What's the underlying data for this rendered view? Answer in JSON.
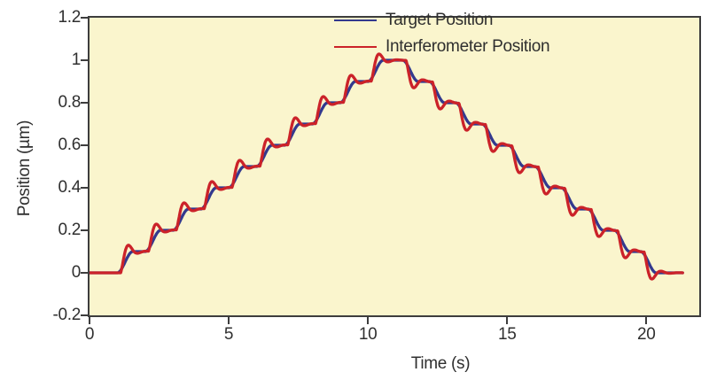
{
  "chart_data": {
    "type": "line",
    "title": "",
    "xlabel": "Time (s)",
    "ylabel": "Position (µm)",
    "xlim": [
      0,
      21.9
    ],
    "ylim": [
      -0.2,
      1.2
    ],
    "grid": false,
    "legend_position": "top-right-inside",
    "x_ticks": {
      "values": [
        0,
        5,
        10,
        15,
        20
      ],
      "labels": [
        "0",
        "5",
        "10",
        "15",
        "20"
      ]
    },
    "y_ticks": {
      "values": [
        -0.2,
        0,
        0.2,
        0.4,
        0.6,
        0.8,
        1,
        1.2
      ],
      "labels": [
        "-0.2",
        "0",
        "0.2",
        "0.4",
        "0.6",
        "0.8",
        "1",
        "1.2"
      ]
    },
    "colors": {
      "plot_background": "#FAF5CD",
      "frame": "#3D3D3D",
      "text": "#2F2F2F"
    },
    "series": [
      {
        "name": "Target Position",
        "color": "#33398E",
        "shape": "smoothed staircase command"
      },
      {
        "name": "Interferometer Position",
        "color": "#CB2229",
        "shape": "measured response with lag, overshoot and settling"
      }
    ],
    "staircase_model": {
      "base_level_um": 0,
      "peak_level_um": 1,
      "step_height_um": 0.1,
      "up_step_start_times_s": [
        1,
        2,
        3,
        4,
        5,
        6,
        7,
        8,
        9,
        10
      ],
      "down_step_start_times_s": [
        11.25,
        12.2,
        13.15,
        14.1,
        15.05,
        16.0,
        16.95,
        17.9,
        18.85,
        19.8
      ],
      "target_transition_duration_s": 0.55,
      "response_lag_s": 0.12,
      "response_time_scale_s": 0.32,
      "response_damping": 1.3,
      "response_ring_frequency": 3.16,
      "t_start_s": 0,
      "t_end_s": 21.3
    }
  }
}
